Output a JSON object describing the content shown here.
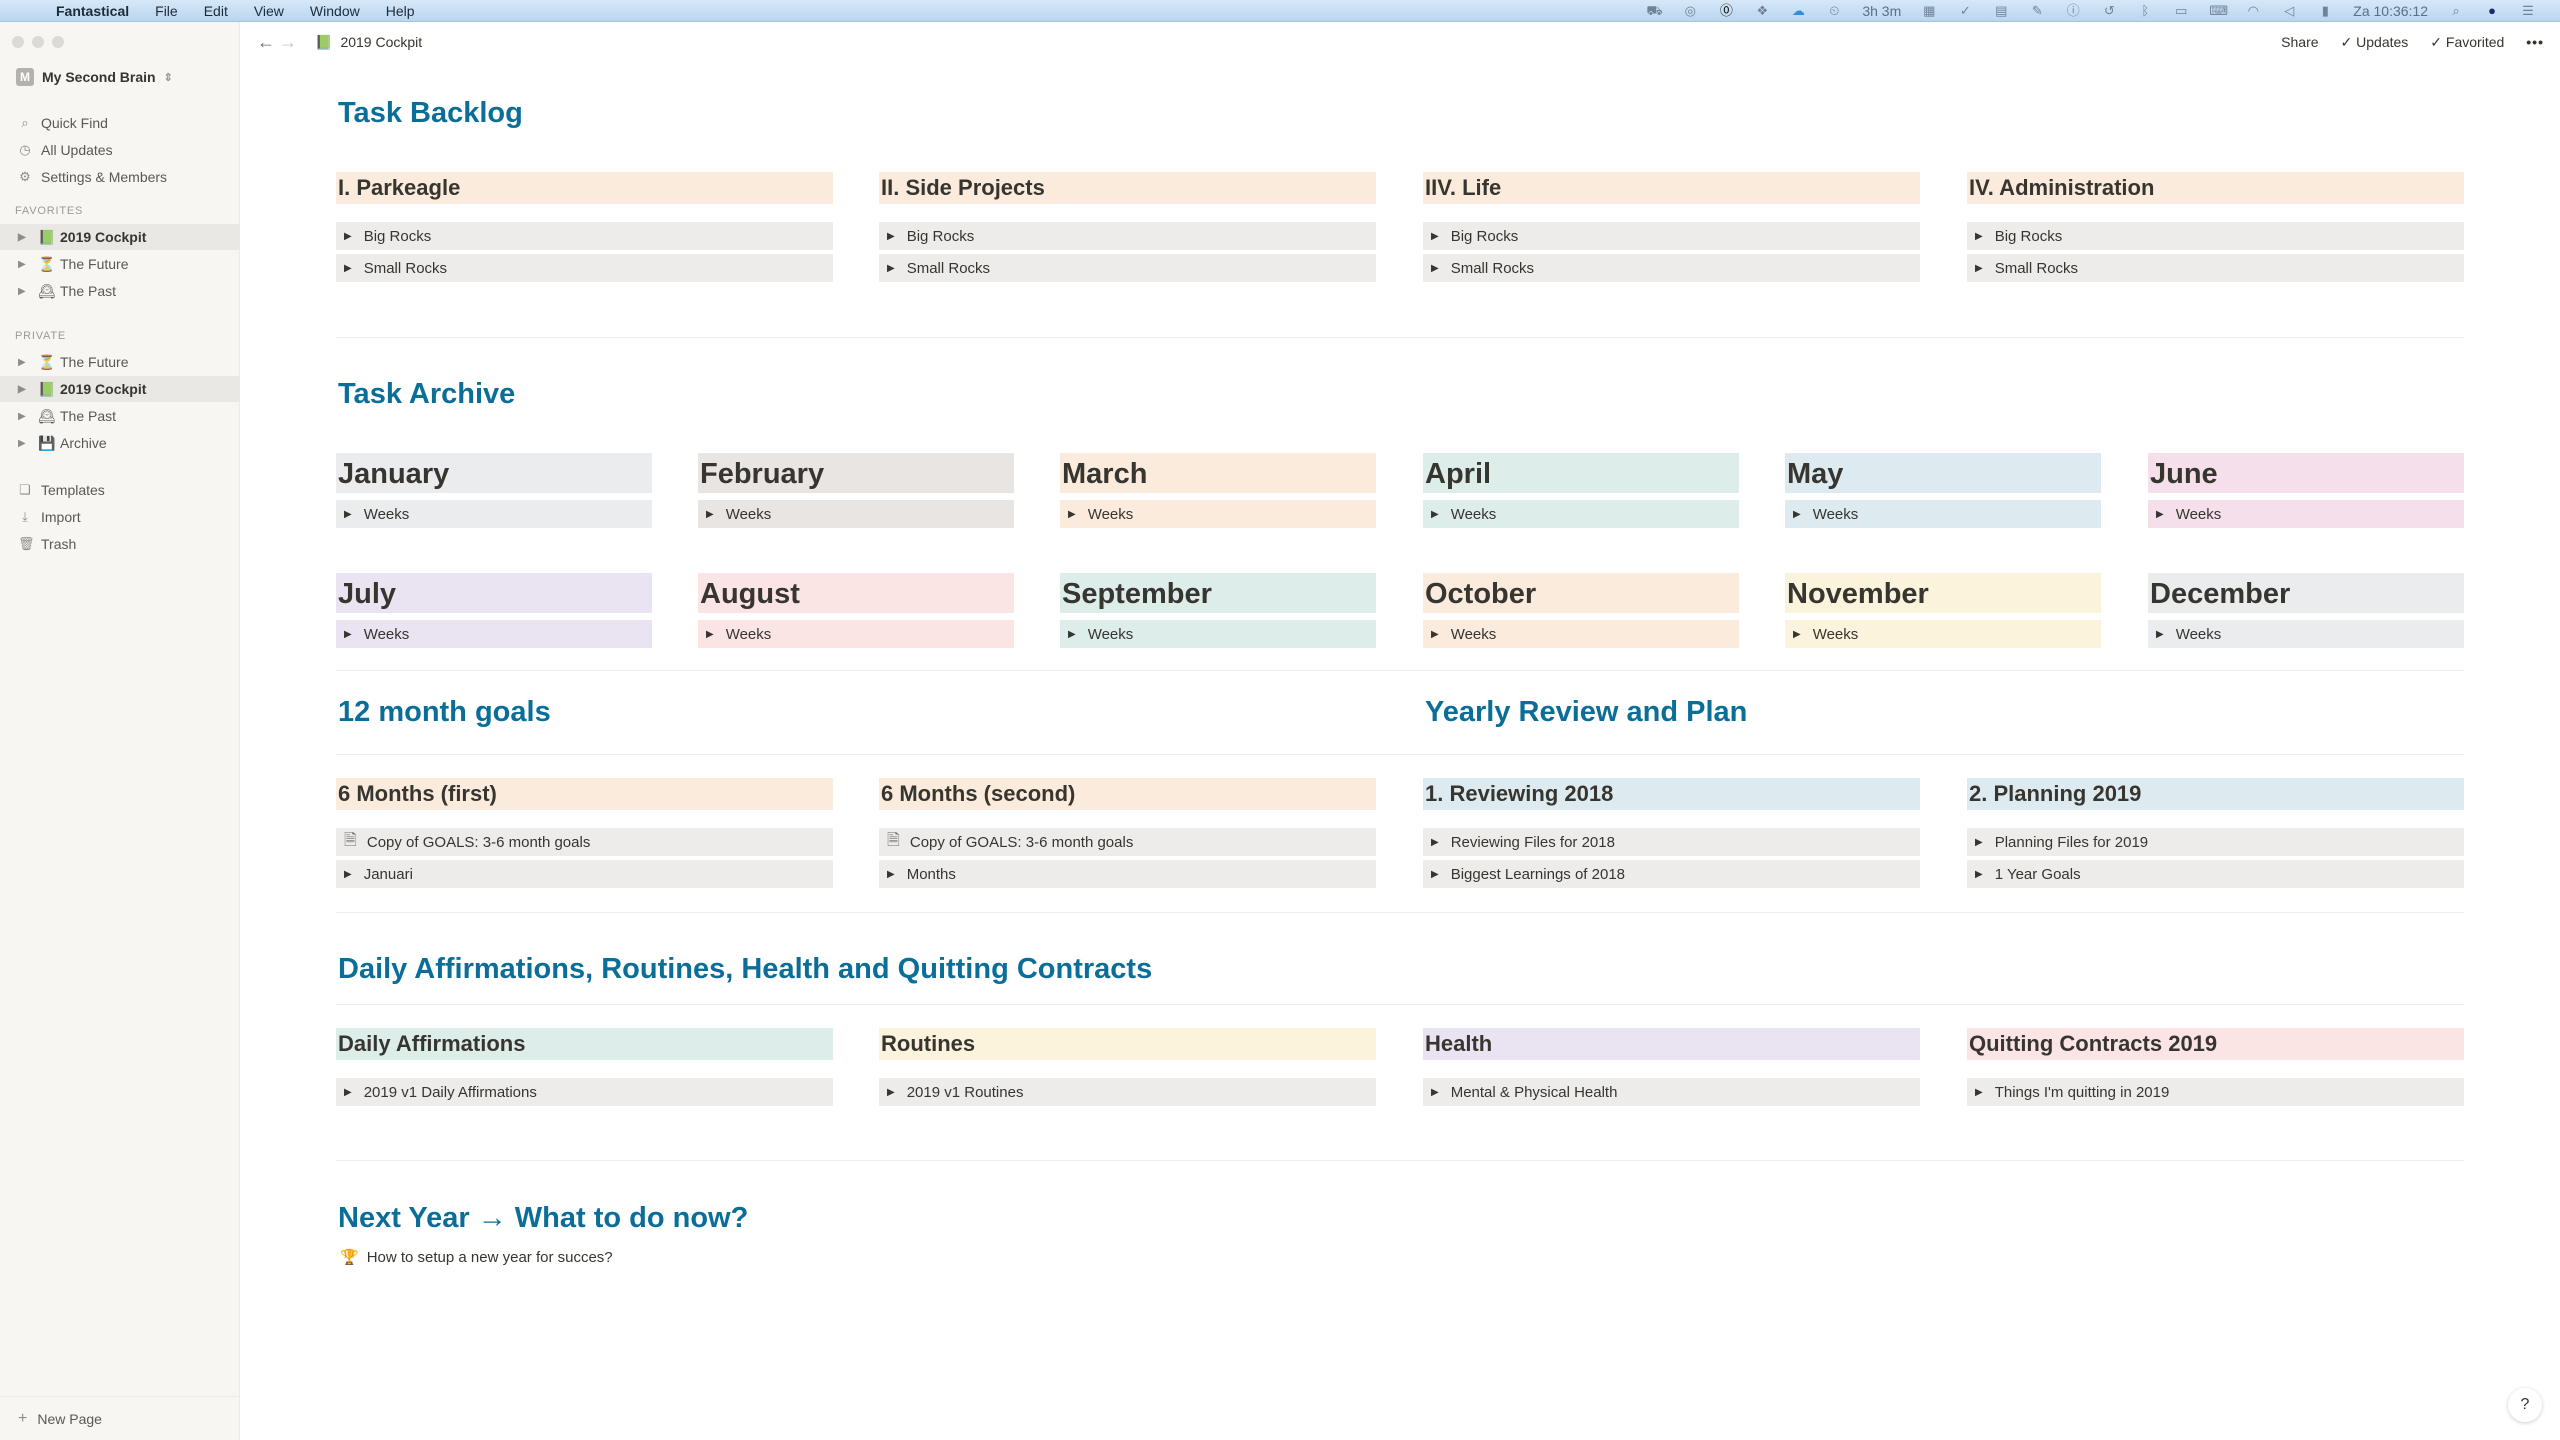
{
  "menubar": {
    "app": "Fantastical",
    "items": [
      "File",
      "Edit",
      "View",
      "Window",
      "Help"
    ],
    "timer": "3h 3m",
    "clock": "Za 10:36:12"
  },
  "sidebar": {
    "workspace_badge": "M",
    "workspace": "My Second Brain",
    "top_items": [
      {
        "label": "Quick Find",
        "icon": "search-icon"
      },
      {
        "label": "All Updates",
        "icon": "clock-icon"
      },
      {
        "label": "Settings & Members",
        "icon": "gear-icon"
      }
    ],
    "favorites_label": "FAVORITES",
    "favorites": [
      {
        "label": "2019 Cockpit",
        "emoji": "📗",
        "active": true
      },
      {
        "label": "The Future",
        "emoji": "⏳"
      },
      {
        "label": "The Past",
        "emoji": "🕰"
      }
    ],
    "private_label": "PRIVATE",
    "private": [
      {
        "label": "The Future",
        "emoji": "⏳"
      },
      {
        "label": "2019 Cockpit",
        "emoji": "📗",
        "active": true
      },
      {
        "label": "The Past",
        "emoji": "🕰"
      },
      {
        "label": "Archive",
        "emoji": "💾"
      }
    ],
    "bottom_items": [
      {
        "label": "Templates",
        "icon": "templates-icon"
      },
      {
        "label": "Import",
        "icon": "import-icon"
      },
      {
        "label": "Trash",
        "icon": "trash-icon"
      }
    ],
    "new_page": "New Page"
  },
  "topbar": {
    "breadcrumb": "2019 Cockpit",
    "breadcrumb_emoji": "📗",
    "share": "Share",
    "updates": "Updates",
    "favorited": "Favorited",
    "more": "•••"
  },
  "backlog": {
    "title": "Task Backlog",
    "cards": [
      {
        "title": "I. Parkeagle",
        "items": [
          "Big Rocks",
          "Small Rocks"
        ]
      },
      {
        "title": "II. Side Projects",
        "items": [
          "Big Rocks",
          "Small Rocks"
        ]
      },
      {
        "title": "IIV. Life",
        "items": [
          "Big Rocks",
          "Small Rocks"
        ]
      },
      {
        "title": "IV. Administration",
        "items": [
          "Big Rocks",
          "Small Rocks"
        ]
      }
    ]
  },
  "archive": {
    "title": "Task Archive",
    "months": [
      {
        "name": "January",
        "item": "Weeks",
        "color": "gray"
      },
      {
        "name": "February",
        "item": "Weeks",
        "color": "brown"
      },
      {
        "name": "March",
        "item": "Weeks",
        "color": "orange"
      },
      {
        "name": "April",
        "item": "Weeks",
        "color": "green"
      },
      {
        "name": "May",
        "item": "Weeks",
        "color": "blue"
      },
      {
        "name": "June",
        "item": "Weeks",
        "color": "pink"
      },
      {
        "name": "July",
        "item": "Weeks",
        "color": "purple"
      },
      {
        "name": "August",
        "item": "Weeks",
        "color": "red"
      },
      {
        "name": "September",
        "item": "Weeks",
        "color": "green"
      },
      {
        "name": "October",
        "item": "Weeks",
        "color": "orange"
      },
      {
        "name": "November",
        "item": "Weeks",
        "color": "yellow"
      },
      {
        "name": "December",
        "item": "Weeks",
        "color": "gray"
      }
    ]
  },
  "goals": {
    "title": "12 month goals",
    "cards": [
      {
        "title": "6 Months (first)",
        "color": "orange",
        "items": [
          {
            "label": "Copy of GOALS: 3-6 month goals",
            "doc": true
          },
          {
            "label": "Januari"
          }
        ]
      },
      {
        "title": "6 Months (second)",
        "color": "orange",
        "items": [
          {
            "label": "Copy of GOALS: 3-6 month goals",
            "doc": true
          },
          {
            "label": "Months"
          }
        ]
      }
    ]
  },
  "review": {
    "title": "Yearly Review and Plan",
    "cards": [
      {
        "title": "1. Reviewing 2018",
        "color": "blue",
        "items": [
          {
            "label": "Reviewing Files for 2018"
          },
          {
            "label": "Biggest Learnings of 2018"
          }
        ]
      },
      {
        "title": "2. Planning 2019",
        "color": "blue",
        "items": [
          {
            "label": "Planning Files for 2019"
          },
          {
            "label": "1 Year Goals"
          }
        ]
      }
    ]
  },
  "daily": {
    "title": "Daily Affirmations, Routines, Health and Quitting Contracts",
    "cards": [
      {
        "title": "Daily Affirmations",
        "color": "green",
        "item": "2019 v1 Daily Affirmations"
      },
      {
        "title": "Routines",
        "color": "yellow",
        "item": "2019 v1 Routines"
      },
      {
        "title": "Health",
        "color": "purple",
        "item": "Mental & Physical Health"
      },
      {
        "title": "Quitting Contracts 2019",
        "color": "red",
        "item": "Things I'm quitting in 2019"
      }
    ]
  },
  "nextyear": {
    "title": "Next Year → What to do now?",
    "emoji": "🏆",
    "link": "How to setup a new year for succes?"
  },
  "help": "?"
}
